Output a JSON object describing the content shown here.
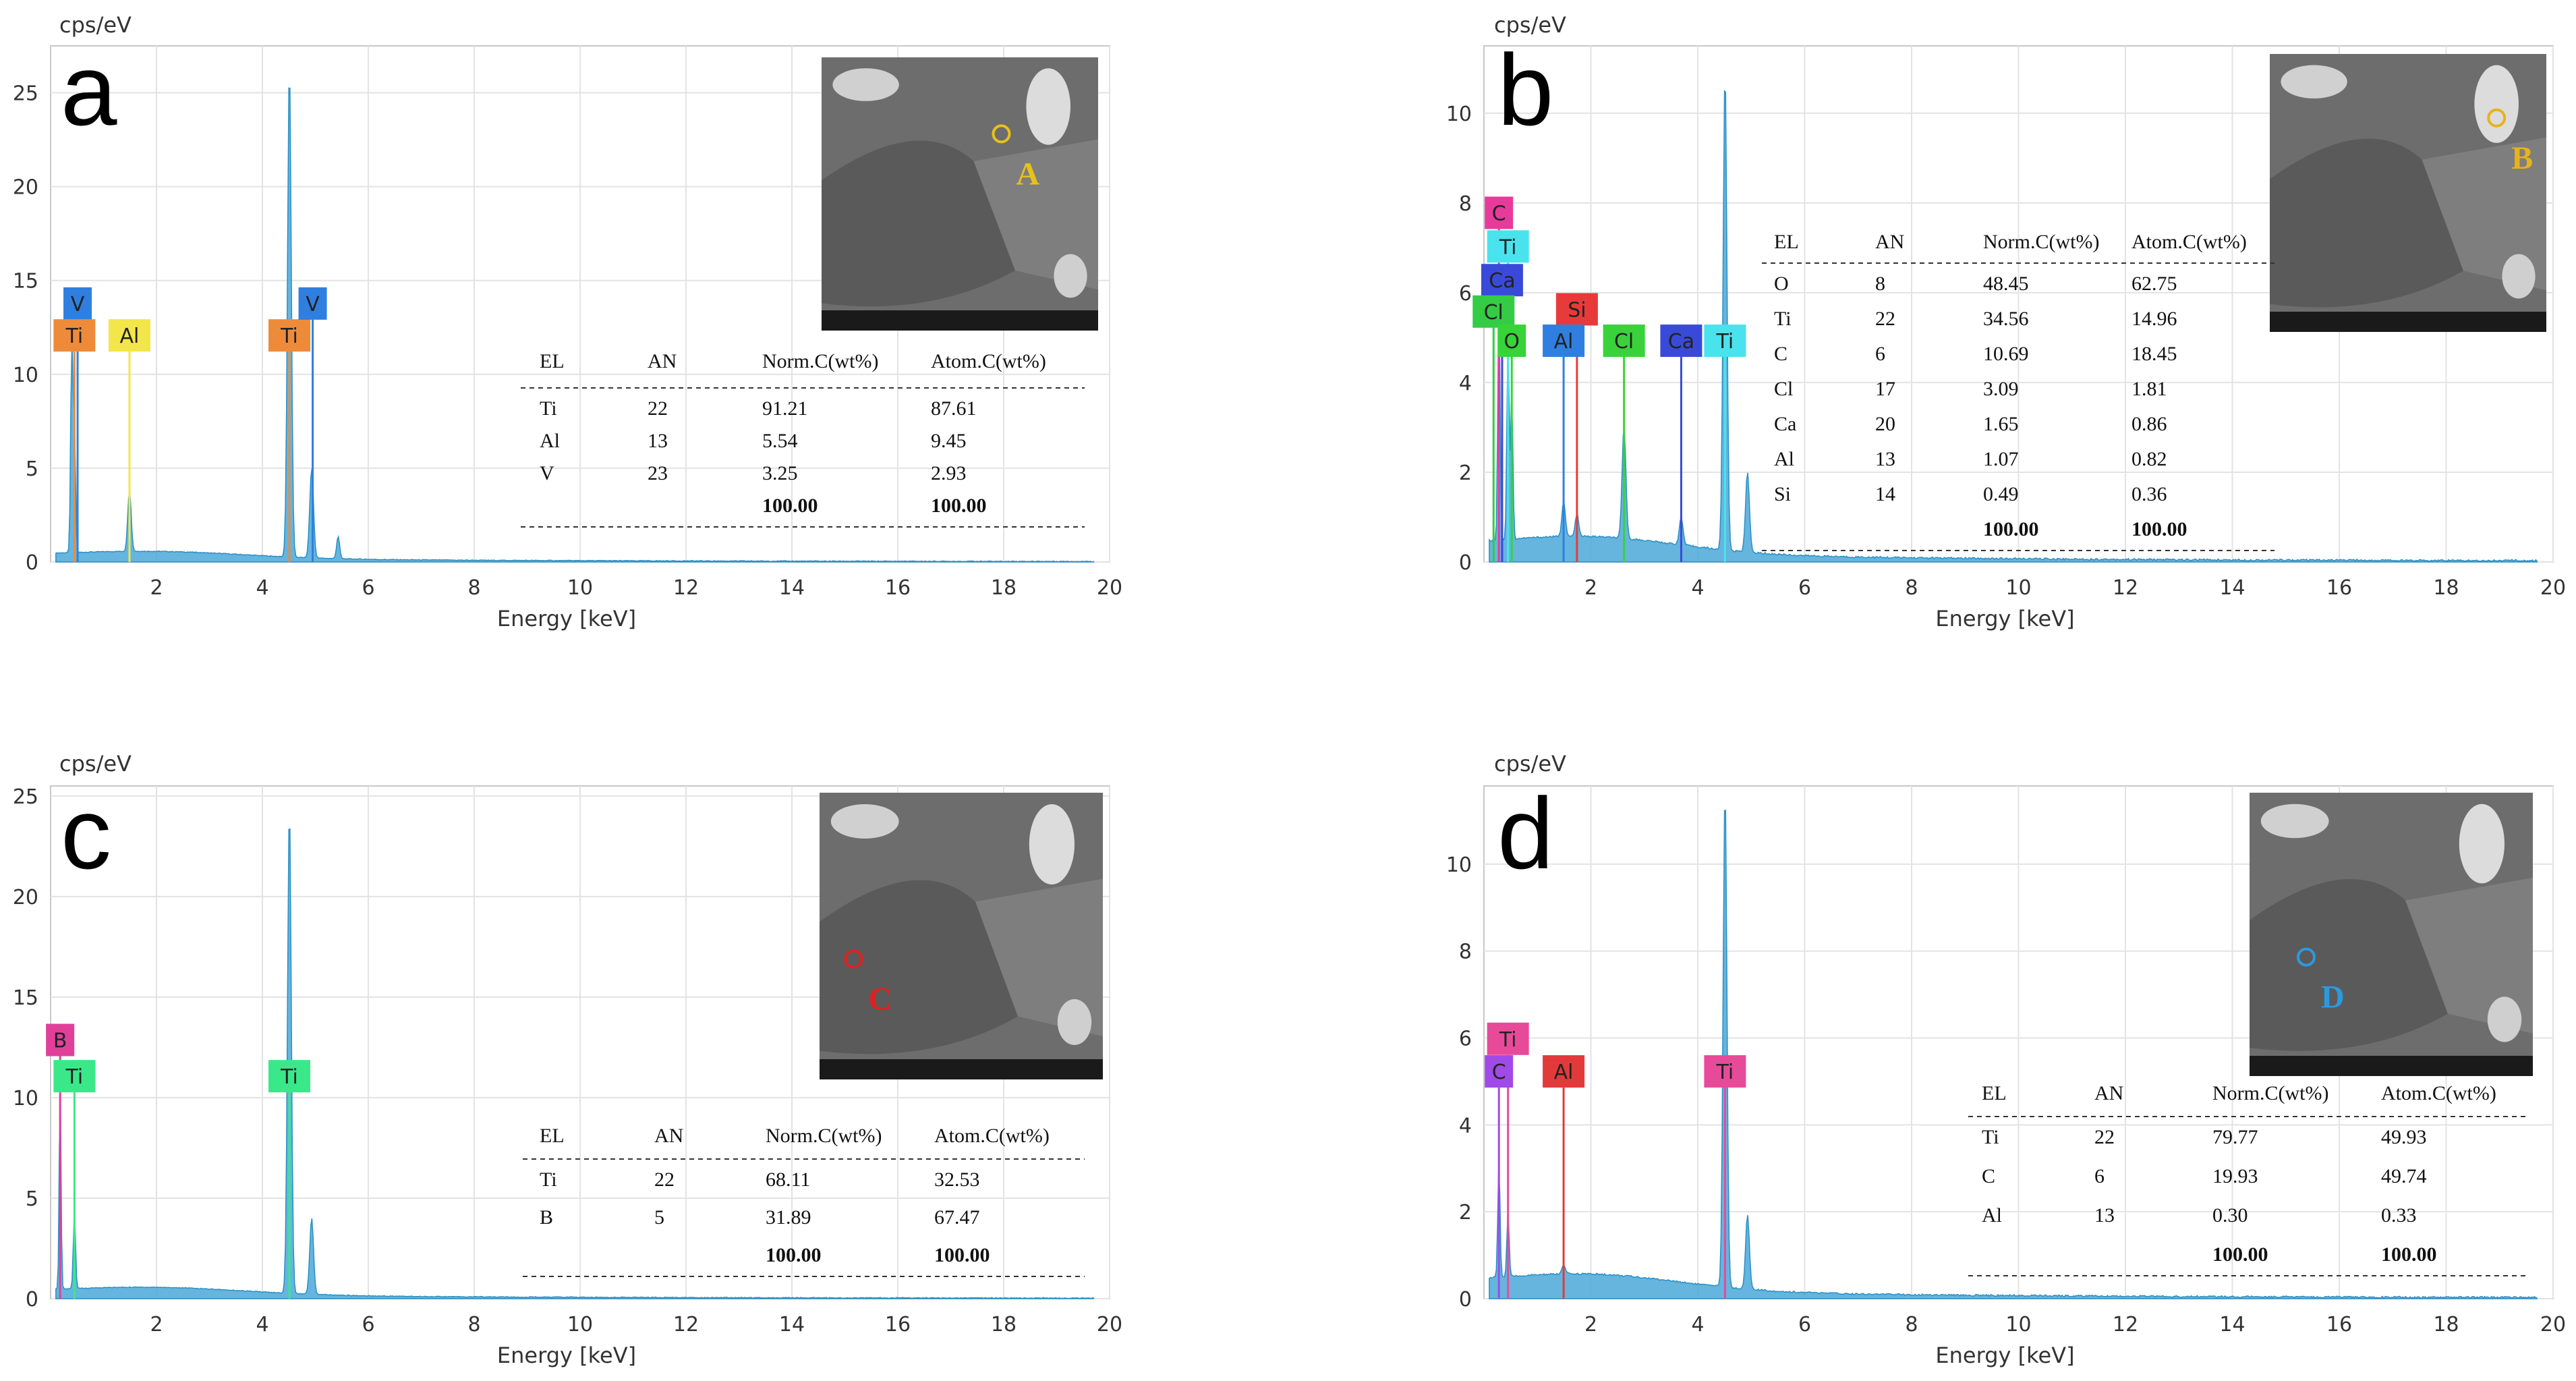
{
  "figure": {
    "energy_axis_label": "Energy [keV]",
    "count_axis_label": "cps/eV",
    "table_headers": [
      "EL",
      "AN",
      "Norm.C(wt%)",
      "Atom.C(wt%)"
    ]
  },
  "colors": {
    "spectrum_fill": "#4aa8d8",
    "spectrum_edge": "#2b8fc4",
    "grid": "#e3e3e3",
    "panel_border": "#c8c8c8",
    "Ti": "#ee8b3a",
    "V": "#2f7fe0",
    "Al": "#f2e64a",
    "O": "#36d438",
    "Cl": "#3ad23a",
    "Ca": "#3a4ad8",
    "Si": "#e83a3a",
    "C": "#e83a9a",
    "Ti_b": "#3ae0e6",
    "B": "#e0409a",
    "Ti_c": "#3ae88a",
    "Al_d": "#e23a3a",
    "Ti_d": "#e84a9a",
    "C_d": "#a04ae8",
    "Cl_b": "#33cc44",
    "Ti_cyan": "#49e3ee"
  },
  "chart_data": [
    {
      "type": "line",
      "panel": "a",
      "xlabel": "Energy [keV]",
      "ylabel": "cps/eV",
      "xlim": [
        0,
        20
      ],
      "ylim": [
        0,
        27.5
      ],
      "xticks": [
        2,
        4,
        6,
        8,
        10,
        12,
        14,
        16,
        18,
        20
      ],
      "yticks": [
        0,
        5,
        10,
        15,
        20,
        25
      ],
      "peaks": [
        {
          "e": 0.4,
          "h": 11.0,
          "w": 0.03
        },
        {
          "e": 0.45,
          "h": 6.5,
          "w": 0.03
        },
        {
          "e": 1.49,
          "h": 3.3,
          "w": 0.045
        },
        {
          "e": 4.51,
          "h": 26.2,
          "w": 0.05
        },
        {
          "e": 4.93,
          "h": 4.8,
          "w": 0.05
        },
        {
          "e": 5.43,
          "h": 1.2,
          "w": 0.04
        }
      ],
      "markers": [
        {
          "el": "V",
          "e": 0.51,
          "color": "#2f7fe0",
          "label_y": 13.7
        },
        {
          "el": "Ti",
          "e": 0.45,
          "color": "#ee8b3a",
          "label_y": 12.0
        },
        {
          "el": "Al",
          "e": 1.49,
          "color": "#f2e64a",
          "label_y": 12.0
        },
        {
          "el": "Ti",
          "e": 4.51,
          "color": "#ee8b3a",
          "label_y": 12.0
        },
        {
          "el": "V",
          "e": 4.95,
          "color": "#2f7fe0",
          "label_y": 13.7
        }
      ],
      "table": [
        [
          "Ti",
          "22",
          "91.21",
          "87.61"
        ],
        [
          "Al",
          "13",
          "5.54",
          "9.45"
        ],
        [
          "V",
          "23",
          "3.25",
          "2.93"
        ]
      ],
      "total": [
        "100.00",
        "100.00"
      ],
      "inset_label": "A",
      "inset_label_color": "#e8c21a"
    },
    {
      "type": "line",
      "panel": "b",
      "xlabel": "Energy [keV]",
      "ylabel": "cps/eV",
      "xlim": [
        0,
        20
      ],
      "ylim": [
        0,
        11.5
      ],
      "xticks": [
        2,
        4,
        6,
        8,
        10,
        12,
        14,
        16,
        18,
        20
      ],
      "yticks": [
        0,
        2,
        4,
        6,
        8,
        10
      ],
      "peaks": [
        {
          "e": 0.28,
          "h": 5.2,
          "w": 0.03
        },
        {
          "e": 0.45,
          "h": 4.5,
          "w": 0.03
        },
        {
          "e": 0.52,
          "h": 3.2,
          "w": 0.03
        },
        {
          "e": 1.49,
          "h": 0.8,
          "w": 0.045
        },
        {
          "e": 1.74,
          "h": 0.5,
          "w": 0.045
        },
        {
          "e": 2.62,
          "h": 2.5,
          "w": 0.05
        },
        {
          "e": 3.69,
          "h": 0.6,
          "w": 0.05
        },
        {
          "e": 4.51,
          "h": 10.7,
          "w": 0.05
        },
        {
          "e": 4.93,
          "h": 1.8,
          "w": 0.05
        }
      ],
      "markers": [
        {
          "el": "C",
          "e": 0.28,
          "color": "#e83a9a",
          "label_y": 7.75
        },
        {
          "el": "Ti",
          "e": 0.45,
          "color": "#49e3ee",
          "label_y": 7.0
        },
        {
          "el": "Ca",
          "e": 0.34,
          "color": "#3a4ad8",
          "label_y": 6.25
        },
        {
          "el": "Cl",
          "e": 0.18,
          "color": "#33cc44",
          "label_y": 5.55
        },
        {
          "el": "O",
          "e": 0.52,
          "color": "#36d438",
          "label_y": 4.9
        },
        {
          "el": "Si",
          "e": 1.74,
          "color": "#e83a3a",
          "label_y": 5.6
        },
        {
          "el": "Al",
          "e": 1.49,
          "color": "#2f7fe0",
          "label_y": 4.9
        },
        {
          "el": "Cl",
          "e": 2.62,
          "color": "#3ad23a",
          "label_y": 4.9
        },
        {
          "el": "Ca",
          "e": 3.69,
          "color": "#3a4ad8",
          "label_y": 4.9
        },
        {
          "el": "Ti",
          "e": 4.51,
          "color": "#49e3ee",
          "label_y": 4.9
        }
      ],
      "table": [
        [
          "O",
          "8",
          "48.45",
          "62.75"
        ],
        [
          "Ti",
          "22",
          "34.56",
          "14.96"
        ],
        [
          "C",
          "6",
          "10.69",
          "18.45"
        ],
        [
          "Cl",
          "17",
          "3.09",
          "1.81"
        ],
        [
          "Ca",
          "20",
          "1.65",
          "0.86"
        ],
        [
          "Al",
          "13",
          "1.07",
          "0.82"
        ],
        [
          "Si",
          "14",
          "0.49",
          "0.36"
        ]
      ],
      "total": [
        "100.00",
        "100.00"
      ],
      "inset_label": "B",
      "inset_label_color": "#e8b21a"
    },
    {
      "type": "line",
      "panel": "c",
      "xlabel": "Energy [keV]",
      "ylabel": "cps/eV",
      "xlim": [
        0,
        20
      ],
      "ylim": [
        0,
        25.5
      ],
      "xticks": [
        2,
        4,
        6,
        8,
        10,
        12,
        14,
        16,
        18,
        20
      ],
      "yticks": [
        0,
        5,
        10,
        15,
        20,
        25
      ],
      "peaks": [
        {
          "e": 0.18,
          "h": 10.0,
          "w": 0.025
        },
        {
          "e": 0.45,
          "h": 3.8,
          "w": 0.03
        },
        {
          "e": 4.51,
          "h": 24.2,
          "w": 0.05
        },
        {
          "e": 4.93,
          "h": 3.8,
          "w": 0.05
        }
      ],
      "markers": [
        {
          "el": "B",
          "e": 0.18,
          "color": "#e0409a",
          "label_y": 12.8
        },
        {
          "el": "Ti",
          "e": 0.45,
          "color": "#3ae88a",
          "label_y": 11.0
        },
        {
          "el": "Ti",
          "e": 4.51,
          "color": "#3ae88a",
          "label_y": 11.0
        }
      ],
      "table": [
        [
          "Ti",
          "22",
          "68.11",
          "32.53"
        ],
        [
          "B",
          "5",
          "31.89",
          "67.47"
        ]
      ],
      "total": [
        "100.00",
        "100.00"
      ],
      "inset_label": "C",
      "inset_label_color": "#e02020"
    },
    {
      "type": "line",
      "panel": "d",
      "xlabel": "Energy [keV]",
      "ylabel": "cps/eV",
      "xlim": [
        0,
        20
      ],
      "ylim": [
        0,
        11.8
      ],
      "xticks": [
        2,
        4,
        6,
        8,
        10,
        12,
        14,
        16,
        18,
        20
      ],
      "yticks": [
        0,
        2,
        4,
        6,
        8,
        10
      ],
      "peaks": [
        {
          "e": 0.28,
          "h": 2.6,
          "w": 0.03
        },
        {
          "e": 0.45,
          "h": 1.5,
          "w": 0.03
        },
        {
          "e": 1.49,
          "h": 0.2,
          "w": 0.045
        },
        {
          "e": 4.51,
          "h": 11.5,
          "w": 0.05
        },
        {
          "e": 4.93,
          "h": 1.7,
          "w": 0.05
        }
      ],
      "markers": [
        {
          "el": "Ti",
          "e": 0.45,
          "color": "#e84a9a",
          "label_y": 5.95
        },
        {
          "el": "C",
          "e": 0.28,
          "color": "#a04ae8",
          "label_y": 5.2
        },
        {
          "el": "Al",
          "e": 1.49,
          "color": "#e23a3a",
          "label_y": 5.2
        },
        {
          "el": "Ti",
          "e": 4.51,
          "color": "#e84a9a",
          "label_y": 5.2
        }
      ],
      "table": [
        [
          "Ti",
          "22",
          "79.77",
          "49.93"
        ],
        [
          "C",
          "6",
          "19.93",
          "49.74"
        ],
        [
          "Al",
          "13",
          "0.30",
          "0.33"
        ]
      ],
      "total": [
        "100.00",
        "100.00"
      ],
      "inset_label": "D",
      "inset_label_color": "#2a9ae0"
    }
  ]
}
